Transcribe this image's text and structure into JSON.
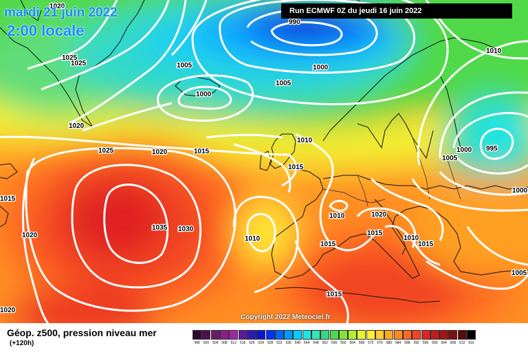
{
  "header": {
    "date_line": "mardi 21 juin 2022",
    "time_line": "2:00 locale",
    "run_line": "Run ECMWF 0Z du jeudi 16 juin 2022"
  },
  "map": {
    "isobar_labels": [
      "1020",
      "1025",
      "1025",
      "1005",
      "990",
      "1010",
      "1000",
      "1005",
      "1000",
      "1020",
      "1025",
      "1020",
      "1015",
      "1010",
      "1015",
      "1010",
      "1000",
      "995",
      "1005",
      "1000",
      "1015",
      "1020",
      "1035",
      "1030",
      "1010",
      "1015",
      "1020",
      "1010",
      "1015",
      "1015",
      "1015",
      "1020",
      "1015",
      "1005",
      "1015"
    ]
  },
  "copyright": "Copyright 2022 Meteociel.fr",
  "legend": {
    "title": "Géop. z500, pression niveau mer",
    "subtitle": "(+120h)",
    "scale": [
      {
        "label": "496",
        "color": "#2e0a2e"
      },
      {
        "label": "500",
        "color": "#4d124d"
      },
      {
        "label": "504",
        "color": "#6b1a6b"
      },
      {
        "label": "508",
        "color": "#8a1f8a"
      },
      {
        "label": "512",
        "color": "#a326a3"
      },
      {
        "label": "516",
        "color": "#5c1a9e"
      },
      {
        "label": "520",
        "color": "#2a1ab8"
      },
      {
        "label": "524",
        "color": "#0a14d6"
      },
      {
        "label": "528",
        "color": "#0033ff"
      },
      {
        "label": "532",
        "color": "#0066ff"
      },
      {
        "label": "536",
        "color": "#0099ff"
      },
      {
        "label": "540",
        "color": "#00ccff"
      },
      {
        "label": "544",
        "color": "#1ae6e6"
      },
      {
        "label": "548",
        "color": "#33e6b3"
      },
      {
        "label": "552",
        "color": "#33d980"
      },
      {
        "label": "556",
        "color": "#4dd94d"
      },
      {
        "label": "560",
        "color": "#80e633"
      },
      {
        "label": "564",
        "color": "#b3ee33"
      },
      {
        "label": "568",
        "color": "#e6f533"
      },
      {
        "label": "572",
        "color": "#ffee33"
      },
      {
        "label": "576",
        "color": "#ffcc33"
      },
      {
        "label": "580",
        "color": "#ffaa22"
      },
      {
        "label": "584",
        "color": "#ff8822"
      },
      {
        "label": "588",
        "color": "#ff6622"
      },
      {
        "label": "592",
        "color": "#f24422"
      },
      {
        "label": "596",
        "color": "#e02222"
      },
      {
        "label": "600",
        "color": "#c41a1a"
      },
      {
        "label": "604",
        "color": "#a31414"
      },
      {
        "label": "608",
        "color": "#801010"
      },
      {
        "label": "612",
        "color": "#5a0a0a"
      },
      {
        "label": "616",
        "color": "#000000"
      }
    ]
  }
}
